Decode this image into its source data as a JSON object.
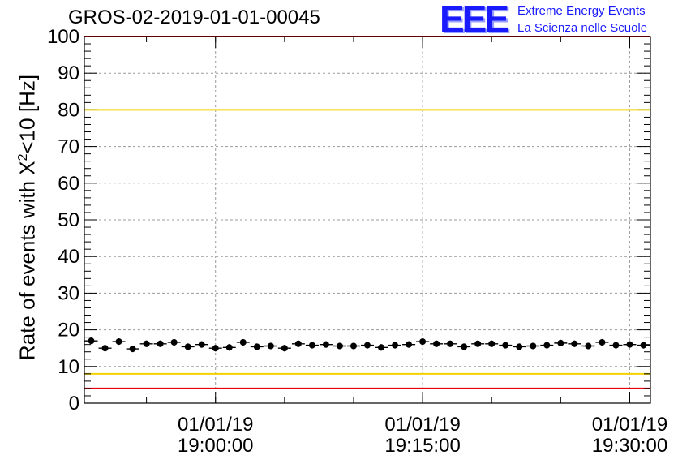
{
  "chart_data": {
    "type": "scatter",
    "title": "GROS-02-2019-01-01-00045",
    "ylabel": {
      "prefix": "Rate of events with X",
      "superscript": "2",
      "suffix": "<10 [Hz]"
    },
    "xlabel": "",
    "ylim": [
      0,
      100
    ],
    "y_ticks": [
      "0",
      "10",
      "20",
      "30",
      "40",
      "50",
      "60",
      "70",
      "80",
      "90",
      "100"
    ],
    "x_tick_labels": [
      {
        "date": "01/01/19",
        "time": "19:00:00"
      },
      {
        "date": "01/01/19",
        "time": "19:15:00"
      },
      {
        "date": "01/01/19",
        "time": "19:30:00"
      }
    ],
    "x_minutes_range": [
      "18:50:30",
      "19:31:30"
    ],
    "grid": true,
    "reference_lines": [
      {
        "y": 100,
        "color": "#e8000b"
      },
      {
        "y": 80,
        "color": "#f2d200"
      },
      {
        "y": 8,
        "color": "#f2d200"
      },
      {
        "y": 4,
        "color": "#e8000b"
      }
    ],
    "series": [
      {
        "marker_color": "#000000",
        "points": [
          {
            "x": "18:51:00",
            "y": 17.0
          },
          {
            "x": "18:52:00",
            "y": 15.0
          },
          {
            "x": "18:53:00",
            "y": 16.8
          },
          {
            "x": "18:54:00",
            "y": 14.8
          },
          {
            "x": "18:55:00",
            "y": 16.2
          },
          {
            "x": "18:56:00",
            "y": 16.2
          },
          {
            "x": "18:57:00",
            "y": 16.6
          },
          {
            "x": "18:58:00",
            "y": 15.4
          },
          {
            "x": "18:59:00",
            "y": 16.0
          },
          {
            "x": "19:00:00",
            "y": 15.0
          },
          {
            "x": "19:01:00",
            "y": 15.2
          },
          {
            "x": "19:02:00",
            "y": 16.6
          },
          {
            "x": "19:03:00",
            "y": 15.4
          },
          {
            "x": "19:04:00",
            "y": 15.6
          },
          {
            "x": "19:05:00",
            "y": 15.0
          },
          {
            "x": "19:06:00",
            "y": 16.2
          },
          {
            "x": "19:07:00",
            "y": 15.8
          },
          {
            "x": "19:08:00",
            "y": 16.0
          },
          {
            "x": "19:09:00",
            "y": 15.6
          },
          {
            "x": "19:10:00",
            "y": 15.6
          },
          {
            "x": "19:11:00",
            "y": 15.8
          },
          {
            "x": "19:12:00",
            "y": 15.2
          },
          {
            "x": "19:13:00",
            "y": 15.8
          },
          {
            "x": "19:14:00",
            "y": 16.0
          },
          {
            "x": "19:15:00",
            "y": 16.8
          },
          {
            "x": "19:16:00",
            "y": 16.2
          },
          {
            "x": "19:17:00",
            "y": 16.2
          },
          {
            "x": "19:18:00",
            "y": 15.4
          },
          {
            "x": "19:19:00",
            "y": 16.2
          },
          {
            "x": "19:20:00",
            "y": 16.2
          },
          {
            "x": "19:21:00",
            "y": 15.8
          },
          {
            "x": "19:22:00",
            "y": 15.4
          },
          {
            "x": "19:23:00",
            "y": 15.6
          },
          {
            "x": "19:24:00",
            "y": 15.8
          },
          {
            "x": "19:25:00",
            "y": 16.4
          },
          {
            "x": "19:26:00",
            "y": 16.2
          },
          {
            "x": "19:27:00",
            "y": 15.6
          },
          {
            "x": "19:28:00",
            "y": 16.6
          },
          {
            "x": "19:29:00",
            "y": 15.8
          },
          {
            "x": "19:30:00",
            "y": 16.0
          },
          {
            "x": "19:31:00",
            "y": 15.8
          }
        ]
      }
    ]
  },
  "logo": {
    "mark": "EEE",
    "line1": "Extreme Energy Events",
    "line2": "La Scienza nelle Scuole"
  }
}
